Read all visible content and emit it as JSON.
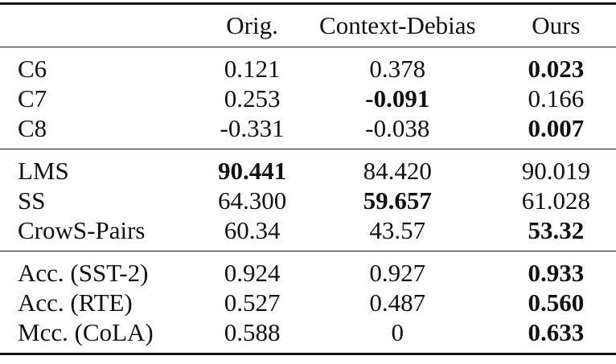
{
  "table": {
    "headers": [
      "",
      "Orig.",
      "Context-Debias",
      "Ours"
    ],
    "groups": [
      [
        {
          "label": "C6",
          "orig": "0.121",
          "ctx": "0.378",
          "ours": "0.023",
          "bold": "ours"
        },
        {
          "label": "C7",
          "orig": "0.253",
          "ctx": "-0.091",
          "ours": "0.166",
          "bold": "ctx"
        },
        {
          "label": "C8",
          "orig": "-0.331",
          "ctx": "-0.038",
          "ours": "0.007",
          "bold": "ours"
        }
      ],
      [
        {
          "label": "LMS",
          "orig": "90.441",
          "ctx": "84.420",
          "ours": "90.019",
          "bold": "orig"
        },
        {
          "label": "SS",
          "orig": "64.300",
          "ctx": "59.657",
          "ours": "61.028",
          "bold": "ctx"
        },
        {
          "label": "CrowS-Pairs",
          "orig": "60.34",
          "ctx": "43.57",
          "ours": "53.32",
          "bold": "ours"
        }
      ],
      [
        {
          "label": "Acc. (SST-2)",
          "orig": "0.924",
          "ctx": "0.927",
          "ours": "0.933",
          "bold": "ours"
        },
        {
          "label": "Acc. (RTE)",
          "orig": "0.527",
          "ctx": "0.487",
          "ours": "0.560",
          "bold": "ours"
        },
        {
          "label": "Mcc. (CoLA)",
          "orig": "0.588",
          "ctx": "0",
          "ours": "0.633",
          "bold": "ours"
        }
      ]
    ]
  }
}
